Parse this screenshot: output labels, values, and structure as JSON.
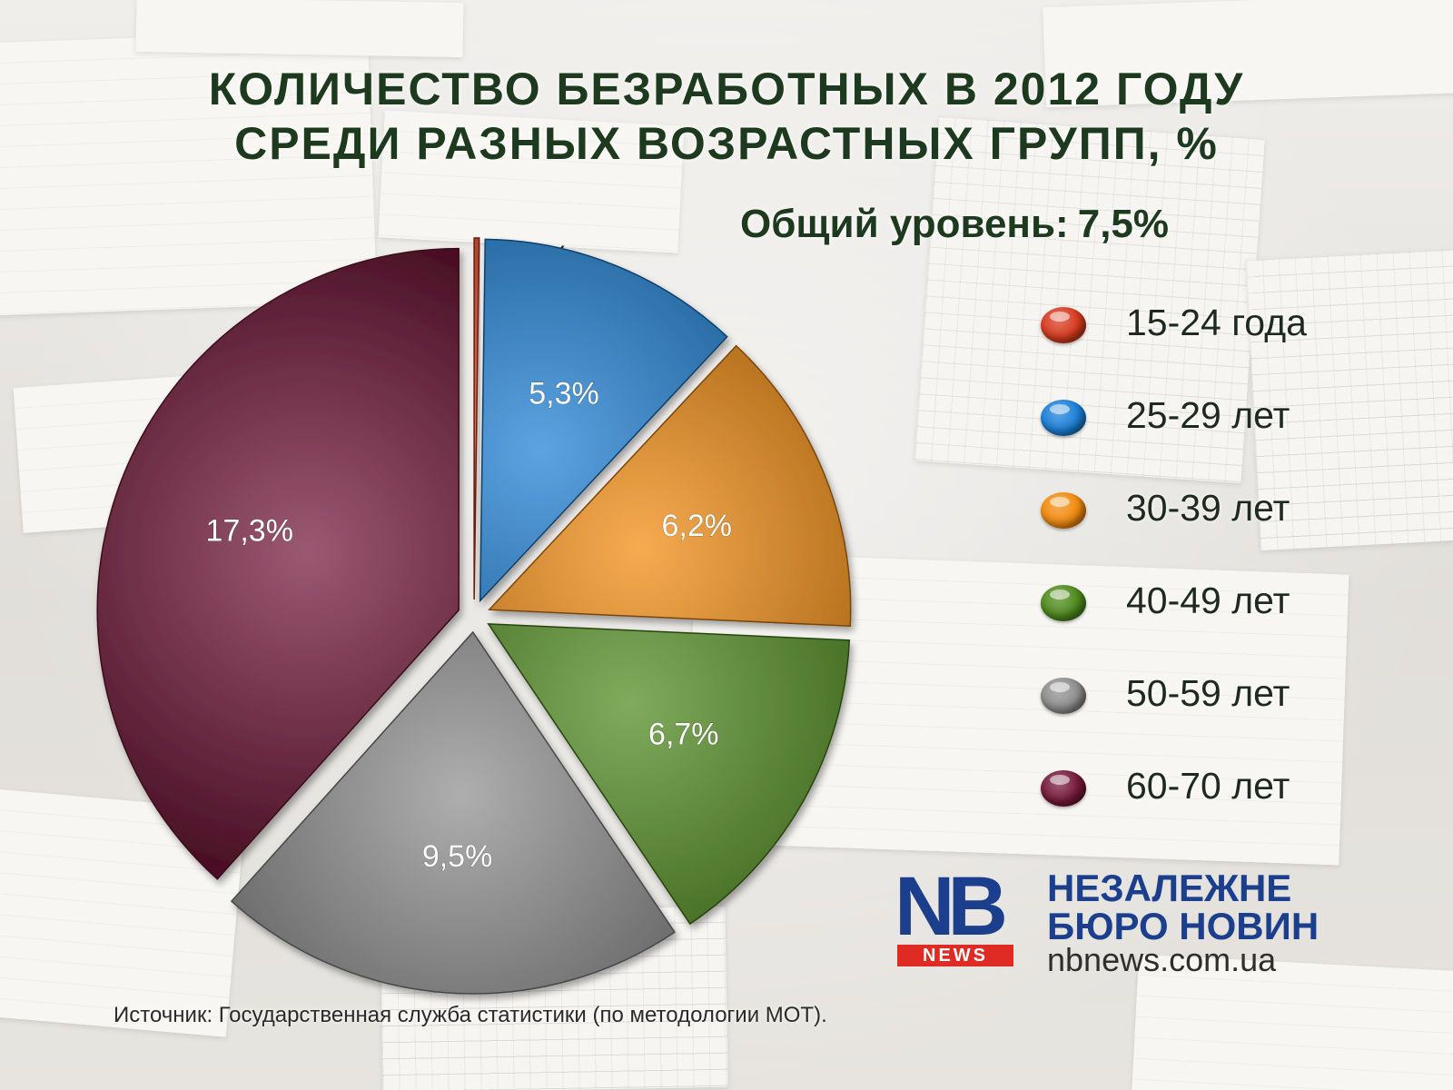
{
  "title_line1": "КОЛИЧЕСТВО БЕЗРАБОТНЫХ В 2012 ГОДУ",
  "title_line2": "СРЕДИ РАЗНЫХ ВОЗРАСТНЫХ ГРУПП, %",
  "overall_label": "Общий уровень:",
  "overall_value": "7,5%",
  "source": "Источник: Государственная служба статистики (по методологии МОТ).",
  "logo": {
    "mark": "NB",
    "badge": "NEWS",
    "name_line1": "НЕЗАЛЕЖНЕ",
    "name_line2": "БЮРО НОВИН",
    "url": "nbnews.com.ua"
  },
  "chart_data": {
    "type": "pie",
    "title": "КОЛИЧЕСТВО БЕЗРАБОТНЫХ В 2012 ГОДУ СРЕДИ РАЗНЫХ ВОЗРАСТНЫХ ГРУПП, %",
    "subtitle": "Общий уровень: 7,5%",
    "legend_position": "right",
    "slices": [
      {
        "label": "15-24 года",
        "value": 0.1,
        "value_label": "0,1%",
        "color": "#d63a1e"
      },
      {
        "label": "25-29 лет",
        "value": 5.3,
        "value_label": "5,3%",
        "color": "#1b7fd6"
      },
      {
        "label": "30-39 лет",
        "value": 6.2,
        "value_label": "6,2%",
        "color": "#f28a0e"
      },
      {
        "label": "40-49 лет",
        "value": 6.7,
        "value_label": "6,7%",
        "color": "#4e8a1c"
      },
      {
        "label": "50-59 лет",
        "value": 9.5,
        "value_label": "9,5%",
        "color": "#8e8e8e"
      },
      {
        "label": "60-70 лет",
        "value": 17.3,
        "value_label": "17,3%",
        "color": "#74193a"
      }
    ]
  }
}
